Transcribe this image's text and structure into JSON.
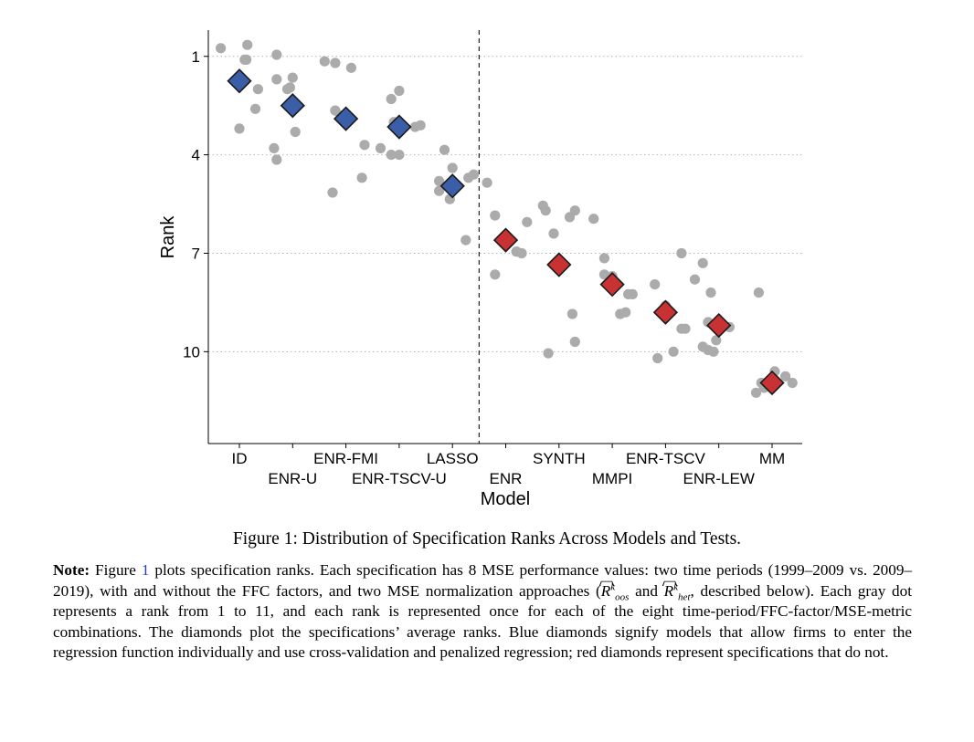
{
  "chart_data": {
    "type": "scatter",
    "ylabel": "Rank",
    "xlabel": "Model",
    "y_ticks": [
      1,
      4,
      7,
      10
    ],
    "ylim": [
      12.8,
      0.2
    ],
    "y_reversed": true,
    "grid": "horizontal dotted",
    "divider_after_category": "LASSO",
    "categories": [
      "ID",
      "ENR-U",
      "ENR-FMI",
      "ENR-TSCV-U",
      "LASSO",
      "ENR",
      "SYNTH",
      "MMPI",
      "ENR-TSCV",
      "ENR-LEW",
      "MM"
    ],
    "average_ranks": [
      1.75,
      2.5,
      2.9,
      3.15,
      4.95,
      6.6,
      7.35,
      7.95,
      8.8,
      9.2,
      10.95
    ],
    "diamond_colors": [
      "#3a5fa8",
      "#3a5fa8",
      "#3a5fa8",
      "#3a5fa8",
      "#3a5fa8",
      "#c83232",
      "#c83232",
      "#c83232",
      "#c83232",
      "#c83232",
      "#c83232"
    ],
    "point_color": "#ababab",
    "points": [
      {
        "x": -0.35,
        "y": 0.75
      },
      {
        "x": 0.15,
        "y": 0.65
      },
      {
        "x": 0.1,
        "y": 1.1
      },
      {
        "x": 0.13,
        "y": 1.1
      },
      {
        "x": 0.35,
        "y": 2.0
      },
      {
        "x": 0.0,
        "y": 1.9
      },
      {
        "x": 0.3,
        "y": 2.6
      },
      {
        "x": 0.0,
        "y": 3.2
      },
      {
        "x": -0.3,
        "y": 0.95
      },
      {
        "x": -0.3,
        "y": 1.7
      },
      {
        "x": 0.0,
        "y": 1.65
      },
      {
        "x": -0.1,
        "y": 2.0
      },
      {
        "x": -0.35,
        "y": 3.8
      },
      {
        "x": -0.3,
        "y": 4.15
      },
      {
        "x": 0.05,
        "y": 3.3
      },
      {
        "x": -0.05,
        "y": 1.95
      },
      {
        "x": -0.4,
        "y": 1.15
      },
      {
        "x": -0.2,
        "y": 1.2
      },
      {
        "x": 0.1,
        "y": 1.35
      },
      {
        "x": -0.2,
        "y": 2.65
      },
      {
        "x": -0.1,
        "y": 2.8
      },
      {
        "x": 0.35,
        "y": 3.7
      },
      {
        "x": 0.3,
        "y": 4.7
      },
      {
        "x": -0.25,
        "y": 5.15
      },
      {
        "x": -0.15,
        "y": 2.3
      },
      {
        "x": 0.0,
        "y": 2.05
      },
      {
        "x": -0.35,
        "y": 3.8
      },
      {
        "x": -0.15,
        "y": 4.0
      },
      {
        "x": 0.0,
        "y": 4.0
      },
      {
        "x": -0.1,
        "y": 3.0
      },
      {
        "x": 0.3,
        "y": 3.15
      },
      {
        "x": 0.4,
        "y": 3.1
      },
      {
        "x": -0.15,
        "y": 3.85
      },
      {
        "x": 0.0,
        "y": 4.4
      },
      {
        "x": -0.25,
        "y": 4.8
      },
      {
        "x": 0.3,
        "y": 4.7
      },
      {
        "x": 0.4,
        "y": 4.6
      },
      {
        "x": -0.25,
        "y": 5.1
      },
      {
        "x": -0.05,
        "y": 5.35
      },
      {
        "x": 0.25,
        "y": 6.6
      },
      {
        "x": -0.35,
        "y": 4.85
      },
      {
        "x": -0.2,
        "y": 5.85
      },
      {
        "x": 0.4,
        "y": 6.05
      },
      {
        "x": 0.2,
        "y": 6.95
      },
      {
        "x": 0.3,
        "y": 7.0
      },
      {
        "x": -0.2,
        "y": 7.65
      },
      {
        "x": 0.0,
        "y": 6.6
      },
      {
        "x": 0.2,
        "y": 6.95
      },
      {
        "x": -0.3,
        "y": 5.55
      },
      {
        "x": -0.25,
        "y": 5.7
      },
      {
        "x": -0.1,
        "y": 6.4
      },
      {
        "x": 0.2,
        "y": 5.9
      },
      {
        "x": 0.3,
        "y": 5.7
      },
      {
        "x": 0.25,
        "y": 8.85
      },
      {
        "x": 0.3,
        "y": 9.7
      },
      {
        "x": -0.2,
        "y": 10.05
      },
      {
        "x": -0.35,
        "y": 5.95
      },
      {
        "x": -0.15,
        "y": 7.15
      },
      {
        "x": -0.15,
        "y": 7.65
      },
      {
        "x": 0.0,
        "y": 7.7
      },
      {
        "x": 0.3,
        "y": 8.25
      },
      {
        "x": 0.38,
        "y": 8.25
      },
      {
        "x": 0.15,
        "y": 8.85
      },
      {
        "x": 0.25,
        "y": 8.8
      },
      {
        "x": -0.2,
        "y": 7.95
      },
      {
        "x": 0.3,
        "y": 7.0
      },
      {
        "x": 0.55,
        "y": 7.8
      },
      {
        "x": -0.15,
        "y": 10.2
      },
      {
        "x": 0.15,
        "y": 10.0
      },
      {
        "x": 0.3,
        "y": 9.3
      },
      {
        "x": 0.37,
        "y": 9.3
      },
      {
        "x": 0.0,
        "y": 8.6
      },
      {
        "x": -0.3,
        "y": 7.3
      },
      {
        "x": -0.15,
        "y": 8.2
      },
      {
        "x": -0.2,
        "y": 9.1
      },
      {
        "x": -0.05,
        "y": 9.65
      },
      {
        "x": -0.3,
        "y": 9.85
      },
      {
        "x": -0.2,
        "y": 9.95
      },
      {
        "x": -0.1,
        "y": 10.0
      },
      {
        "x": 0.2,
        "y": 9.25
      },
      {
        "x": -0.3,
        "y": 11.25
      },
      {
        "x": -0.15,
        "y": 11.1
      },
      {
        "x": -0.05,
        "y": 10.95
      },
      {
        "x": 0.05,
        "y": 10.6
      },
      {
        "x": 0.25,
        "y": 10.75
      },
      {
        "x": 0.38,
        "y": 10.95
      },
      {
        "x": -0.2,
        "y": 10.95
      },
      {
        "x": -0.25,
        "y": 8.2
      }
    ],
    "point_categories": [
      0,
      0,
      0,
      0,
      0,
      0,
      0,
      0,
      1,
      1,
      1,
      1,
      1,
      1,
      1,
      1,
      2,
      2,
      2,
      2,
      2,
      2,
      2,
      2,
      3,
      3,
      3,
      3,
      3,
      3,
      3,
      3,
      4,
      4,
      4,
      4,
      4,
      4,
      4,
      4,
      5,
      5,
      5,
      5,
      5,
      5,
      5,
      5,
      6,
      6,
      6,
      6,
      6,
      6,
      6,
      6,
      7,
      7,
      7,
      7,
      7,
      7,
      7,
      7,
      8,
      8,
      8,
      8,
      8,
      8,
      8,
      8,
      9,
      9,
      9,
      9,
      9,
      9,
      9,
      9,
      10,
      10,
      10,
      10,
      10,
      10,
      10,
      10
    ]
  },
  "caption": "Figure 1: Distribution of Specification Ranks Across Models and Tests.",
  "note": {
    "label": "Note:",
    "t1": "Figure",
    "ref": "1",
    "t2": "plots specification ranks. Each specification has 8 MSE performance values: two time periods (1999–2009 vs. 2009–2019), with and without the FFC factors, and two MSE normalization approaches (",
    "r_sym": "R",
    "sup_k": "k",
    "sub_oos": "oos",
    "and": "and",
    "sub_het": "het",
    "t3": ", described below). Each gray dot represents a rank from 1 to 11, and each rank is represented once for each of the eight time-period/FFC-factor/MSE-metric combinations. The diamonds plot the specifications’ average ranks. Blue diamonds signify models that allow firms to enter the regression function individually and use cross-validation and penalized regression; red diamonds represent specifications that do not."
  }
}
